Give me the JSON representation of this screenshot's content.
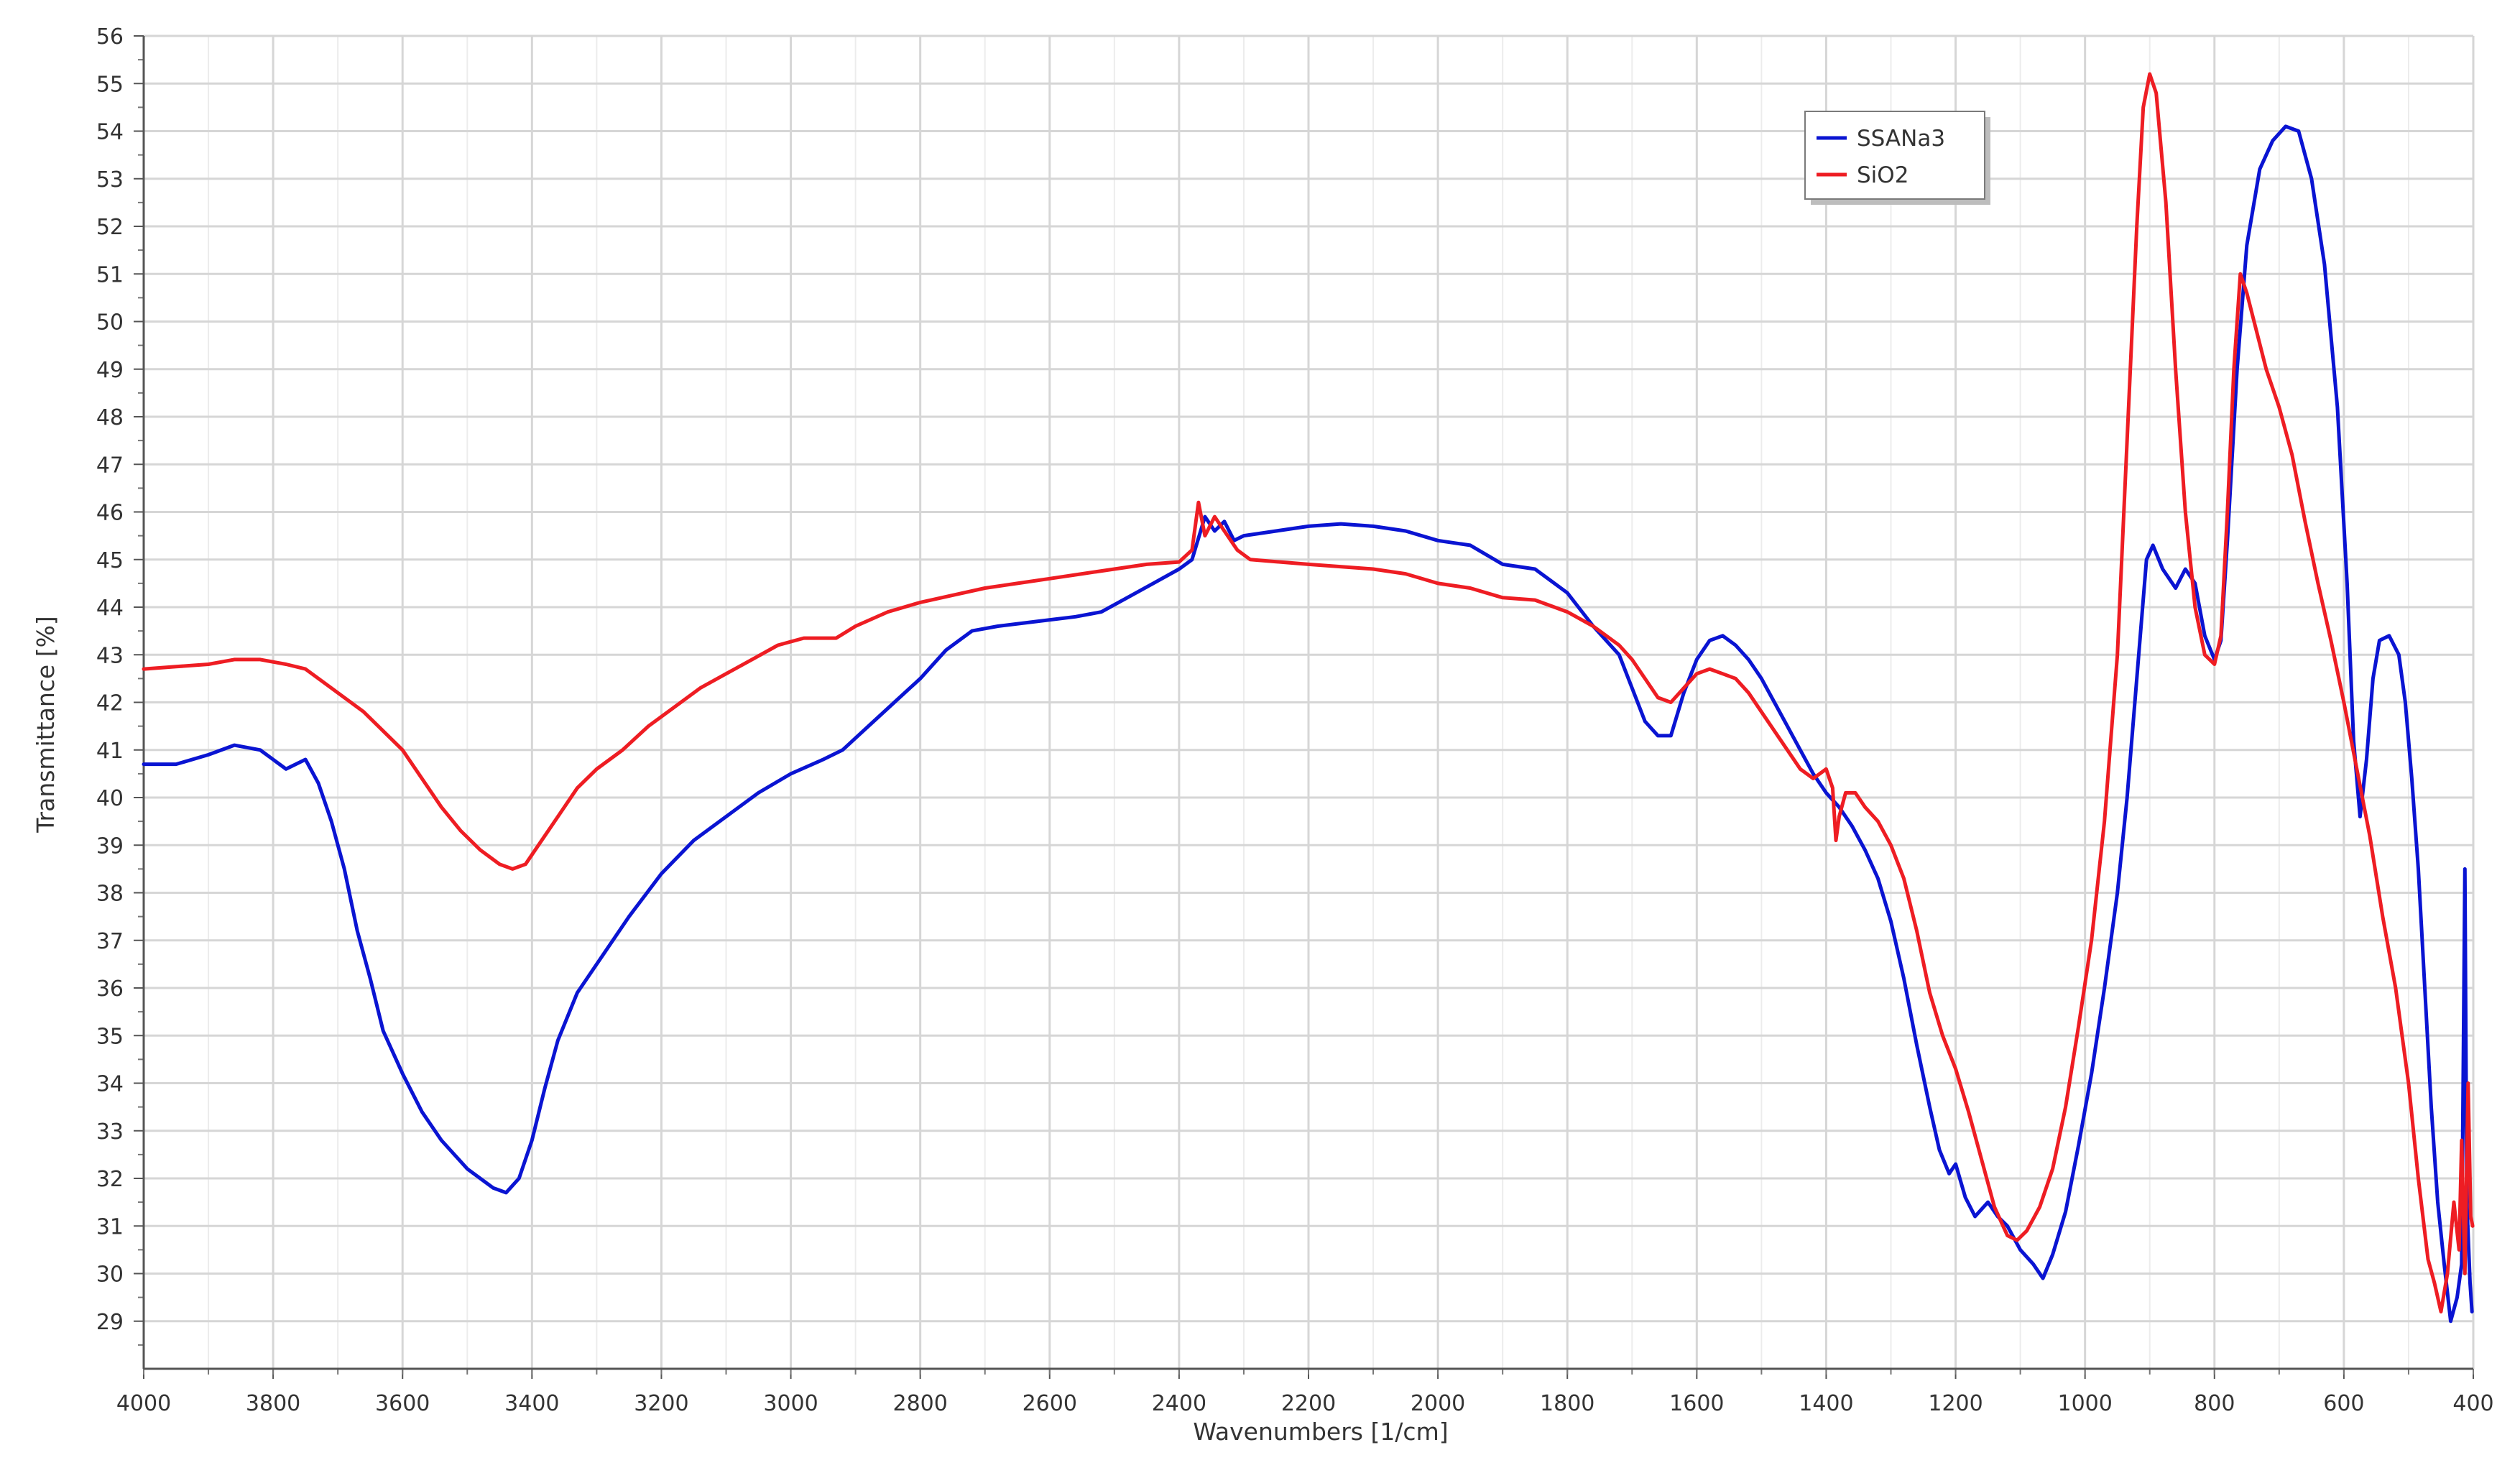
{
  "chart_data": {
    "type": "line",
    "title": "",
    "xlabel": "Wavenumbers [1/cm]",
    "ylabel": "Transmittance [%]",
    "xlim": [
      4000,
      400
    ],
    "x_reversed": true,
    "ylim": [
      28,
      56
    ],
    "x_ticks": [
      4000,
      3800,
      3600,
      3400,
      3200,
      3000,
      2800,
      2600,
      2400,
      2200,
      2000,
      1800,
      1600,
      1400,
      1200,
      1000,
      800,
      600,
      400
    ],
    "y_ticks": [
      29,
      30,
      31,
      32,
      33,
      34,
      35,
      36,
      37,
      38,
      39,
      40,
      41,
      42,
      43,
      44,
      45,
      46,
      47,
      48,
      49,
      50,
      51,
      52,
      53,
      54,
      55,
      56
    ],
    "x_minor_step": 100,
    "grid": true,
    "legend_position": "top-right",
    "series": [
      {
        "name": "SSANa3",
        "color": "#0a14d2",
        "points": [
          [
            4000,
            40.7
          ],
          [
            3950,
            40.7
          ],
          [
            3900,
            40.9
          ],
          [
            3860,
            41.1
          ],
          [
            3820,
            41.0
          ],
          [
            3780,
            40.6
          ],
          [
            3750,
            40.8
          ],
          [
            3730,
            40.3
          ],
          [
            3710,
            39.5
          ],
          [
            3690,
            38.5
          ],
          [
            3670,
            37.2
          ],
          [
            3650,
            36.2
          ],
          [
            3630,
            35.1
          ],
          [
            3600,
            34.2
          ],
          [
            3570,
            33.4
          ],
          [
            3540,
            32.8
          ],
          [
            3500,
            32.2
          ],
          [
            3460,
            31.8
          ],
          [
            3440,
            31.7
          ],
          [
            3420,
            32.0
          ],
          [
            3400,
            32.8
          ],
          [
            3380,
            33.9
          ],
          [
            3360,
            34.9
          ],
          [
            3330,
            35.9
          ],
          [
            3300,
            36.5
          ],
          [
            3250,
            37.5
          ],
          [
            3200,
            38.4
          ],
          [
            3150,
            39.1
          ],
          [
            3100,
            39.6
          ],
          [
            3050,
            40.1
          ],
          [
            3000,
            40.5
          ],
          [
            2950,
            40.8
          ],
          [
            2920,
            41.0
          ],
          [
            2880,
            41.5
          ],
          [
            2840,
            42.0
          ],
          [
            2800,
            42.5
          ],
          [
            2760,
            43.1
          ],
          [
            2720,
            43.5
          ],
          [
            2680,
            43.6
          ],
          [
            2620,
            43.7
          ],
          [
            2560,
            43.8
          ],
          [
            2520,
            43.9
          ],
          [
            2480,
            44.2
          ],
          [
            2440,
            44.5
          ],
          [
            2400,
            44.8
          ],
          [
            2380,
            45.0
          ],
          [
            2360,
            45.9
          ],
          [
            2345,
            45.6
          ],
          [
            2330,
            45.8
          ],
          [
            2315,
            45.4
          ],
          [
            2300,
            45.5
          ],
          [
            2250,
            45.6
          ],
          [
            2200,
            45.7
          ],
          [
            2150,
            45.75
          ],
          [
            2100,
            45.7
          ],
          [
            2050,
            45.6
          ],
          [
            2000,
            45.4
          ],
          [
            1950,
            45.3
          ],
          [
            1900,
            44.9
          ],
          [
            1850,
            44.8
          ],
          [
            1800,
            44.3
          ],
          [
            1760,
            43.6
          ],
          [
            1720,
            43.0
          ],
          [
            1700,
            42.3
          ],
          [
            1680,
            41.6
          ],
          [
            1660,
            41.3
          ],
          [
            1640,
            41.3
          ],
          [
            1620,
            42.2
          ],
          [
            1600,
            42.9
          ],
          [
            1580,
            43.3
          ],
          [
            1560,
            43.4
          ],
          [
            1540,
            43.2
          ],
          [
            1520,
            42.9
          ],
          [
            1500,
            42.5
          ],
          [
            1480,
            42.0
          ],
          [
            1460,
            41.5
          ],
          [
            1440,
            41.0
          ],
          [
            1420,
            40.5
          ],
          [
            1400,
            40.1
          ],
          [
            1380,
            39.8
          ],
          [
            1360,
            39.4
          ],
          [
            1340,
            38.9
          ],
          [
            1320,
            38.3
          ],
          [
            1300,
            37.4
          ],
          [
            1280,
            36.2
          ],
          [
            1260,
            34.8
          ],
          [
            1240,
            33.5
          ],
          [
            1225,
            32.6
          ],
          [
            1210,
            32.1
          ],
          [
            1200,
            32.3
          ],
          [
            1185,
            31.6
          ],
          [
            1170,
            31.2
          ],
          [
            1150,
            31.5
          ],
          [
            1135,
            31.2
          ],
          [
            1120,
            31.0
          ],
          [
            1100,
            30.5
          ],
          [
            1080,
            30.2
          ],
          [
            1065,
            29.9
          ],
          [
            1050,
            30.4
          ],
          [
            1030,
            31.3
          ],
          [
            1010,
            32.7
          ],
          [
            990,
            34.2
          ],
          [
            970,
            36.0
          ],
          [
            950,
            38.0
          ],
          [
            935,
            40.0
          ],
          [
            920,
            42.5
          ],
          [
            905,
            45.0
          ],
          [
            895,
            45.3
          ],
          [
            880,
            44.8
          ],
          [
            860,
            44.4
          ],
          [
            845,
            44.8
          ],
          [
            830,
            44.5
          ],
          [
            815,
            43.4
          ],
          [
            800,
            42.9
          ],
          [
            790,
            43.3
          ],
          [
            780,
            45.4
          ],
          [
            765,
            49.0
          ],
          [
            750,
            51.6
          ],
          [
            730,
            53.2
          ],
          [
            710,
            53.8
          ],
          [
            690,
            54.1
          ],
          [
            670,
            54.0
          ],
          [
            650,
            53.0
          ],
          [
            630,
            51.2
          ],
          [
            610,
            48.2
          ],
          [
            595,
            44.5
          ],
          [
            585,
            41.2
          ],
          [
            575,
            39.6
          ],
          [
            565,
            40.8
          ],
          [
            555,
            42.5
          ],
          [
            545,
            43.3
          ],
          [
            530,
            43.4
          ],
          [
            515,
            43.0
          ],
          [
            505,
            42.0
          ],
          [
            495,
            40.4
          ],
          [
            485,
            38.5
          ],
          [
            475,
            36.0
          ],
          [
            465,
            33.5
          ],
          [
            455,
            31.5
          ],
          [
            445,
            30.2
          ],
          [
            435,
            29.0
          ],
          [
            425,
            29.5
          ],
          [
            418,
            30.2
          ],
          [
            413,
            38.5
          ],
          [
            410,
            31.5
          ],
          [
            405,
            29.8
          ],
          [
            402,
            29.2
          ]
        ]
      },
      {
        "name": "SiO2",
        "color": "#ee1d23",
        "points": [
          [
            4000,
            42.7
          ],
          [
            3950,
            42.75
          ],
          [
            3900,
            42.8
          ],
          [
            3860,
            42.9
          ],
          [
            3820,
            42.9
          ],
          [
            3780,
            42.8
          ],
          [
            3750,
            42.7
          ],
          [
            3720,
            42.4
          ],
          [
            3690,
            42.1
          ],
          [
            3660,
            41.8
          ],
          [
            3630,
            41.4
          ],
          [
            3600,
            41.0
          ],
          [
            3570,
            40.4
          ],
          [
            3540,
            39.8
          ],
          [
            3510,
            39.3
          ],
          [
            3480,
            38.9
          ],
          [
            3450,
            38.6
          ],
          [
            3430,
            38.5
          ],
          [
            3410,
            38.6
          ],
          [
            3390,
            39.0
          ],
          [
            3360,
            39.6
          ],
          [
            3330,
            40.2
          ],
          [
            3300,
            40.6
          ],
          [
            3260,
            41.0
          ],
          [
            3220,
            41.5
          ],
          [
            3180,
            41.9
          ],
          [
            3140,
            42.3
          ],
          [
            3100,
            42.6
          ],
          [
            3060,
            42.9
          ],
          [
            3020,
            43.2
          ],
          [
            2980,
            43.35
          ],
          [
            2930,
            43.35
          ],
          [
            2900,
            43.6
          ],
          [
            2850,
            43.9
          ],
          [
            2800,
            44.1
          ],
          [
            2750,
            44.25
          ],
          [
            2700,
            44.4
          ],
          [
            2650,
            44.5
          ],
          [
            2600,
            44.6
          ],
          [
            2550,
            44.7
          ],
          [
            2500,
            44.8
          ],
          [
            2450,
            44.9
          ],
          [
            2400,
            44.95
          ],
          [
            2380,
            45.2
          ],
          [
            2370,
            46.2
          ],
          [
            2360,
            45.5
          ],
          [
            2345,
            45.9
          ],
          [
            2330,
            45.6
          ],
          [
            2310,
            45.2
          ],
          [
            2290,
            45.0
          ],
          [
            2200,
            44.9
          ],
          [
            2100,
            44.8
          ],
          [
            2050,
            44.7
          ],
          [
            2000,
            44.5
          ],
          [
            1950,
            44.4
          ],
          [
            1900,
            44.2
          ],
          [
            1850,
            44.15
          ],
          [
            1800,
            43.9
          ],
          [
            1760,
            43.6
          ],
          [
            1720,
            43.2
          ],
          [
            1700,
            42.9
          ],
          [
            1680,
            42.5
          ],
          [
            1660,
            42.1
          ],
          [
            1640,
            42.0
          ],
          [
            1620,
            42.3
          ],
          [
            1600,
            42.6
          ],
          [
            1580,
            42.7
          ],
          [
            1560,
            42.6
          ],
          [
            1540,
            42.5
          ],
          [
            1520,
            42.2
          ],
          [
            1500,
            41.8
          ],
          [
            1480,
            41.4
          ],
          [
            1460,
            41.0
          ],
          [
            1440,
            40.6
          ],
          [
            1420,
            40.4
          ],
          [
            1400,
            40.6
          ],
          [
            1390,
            40.2
          ],
          [
            1385,
            39.1
          ],
          [
            1380,
            39.6
          ],
          [
            1370,
            40.1
          ],
          [
            1355,
            40.1
          ],
          [
            1340,
            39.8
          ],
          [
            1320,
            39.5
          ],
          [
            1300,
            39.0
          ],
          [
            1280,
            38.3
          ],
          [
            1260,
            37.2
          ],
          [
            1240,
            35.9
          ],
          [
            1220,
            35.0
          ],
          [
            1200,
            34.3
          ],
          [
            1180,
            33.4
          ],
          [
            1160,
            32.4
          ],
          [
            1140,
            31.4
          ],
          [
            1120,
            30.8
          ],
          [
            1105,
            30.7
          ],
          [
            1090,
            30.9
          ],
          [
            1070,
            31.4
          ],
          [
            1050,
            32.2
          ],
          [
            1030,
            33.5
          ],
          [
            1010,
            35.2
          ],
          [
            990,
            37.0
          ],
          [
            970,
            39.5
          ],
          [
            950,
            43.0
          ],
          [
            935,
            47.5
          ],
          [
            920,
            52.0
          ],
          [
            910,
            54.5
          ],
          [
            900,
            55.2
          ],
          [
            890,
            54.8
          ],
          [
            875,
            52.5
          ],
          [
            860,
            49.0
          ],
          [
            845,
            46.0
          ],
          [
            830,
            44.0
          ],
          [
            815,
            43.0
          ],
          [
            800,
            42.8
          ],
          [
            790,
            43.4
          ],
          [
            780,
            46.0
          ],
          [
            770,
            49.0
          ],
          [
            760,
            51.0
          ],
          [
            750,
            50.6
          ],
          [
            735,
            49.8
          ],
          [
            720,
            49.0
          ],
          [
            700,
            48.2
          ],
          [
            680,
            47.2
          ],
          [
            660,
            45.8
          ],
          [
            640,
            44.5
          ],
          [
            620,
            43.3
          ],
          [
            600,
            42.0
          ],
          [
            580,
            40.6
          ],
          [
            560,
            39.2
          ],
          [
            540,
            37.5
          ],
          [
            520,
            36.0
          ],
          [
            500,
            34.0
          ],
          [
            485,
            32.0
          ],
          [
            470,
            30.3
          ],
          [
            460,
            29.8
          ],
          [
            450,
            29.2
          ],
          [
            440,
            30.0
          ],
          [
            430,
            31.5
          ],
          [
            422,
            30.5
          ],
          [
            418,
            32.8
          ],
          [
            413,
            30.0
          ],
          [
            408,
            34.0
          ],
          [
            404,
            31.2
          ],
          [
            401,
            31.0
          ]
        ]
      }
    ]
  }
}
